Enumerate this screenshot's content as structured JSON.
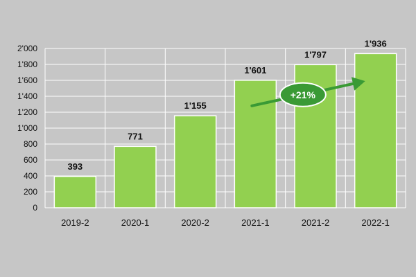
{
  "chart_data": {
    "type": "bar",
    "title": "",
    "xlabel": "",
    "ylabel": "",
    "categories": [
      "2019-2",
      "2020-1",
      "2020-2",
      "2021-1",
      "2021-2",
      "2022-1"
    ],
    "values": [
      393,
      771,
      1155,
      1601,
      1797,
      1936
    ],
    "value_labels": [
      "393",
      "771",
      "1'155",
      "1'601",
      "1'797",
      "1'936"
    ],
    "ylim": [
      0,
      2000
    ],
    "yticks": [
      0,
      200,
      400,
      600,
      800,
      1000,
      1200,
      1400,
      1600,
      1800,
      2000
    ],
    "ytick_labels": [
      "0",
      "200",
      "400",
      "600",
      "800",
      "1'000",
      "1'200",
      "1'400",
      "1'600",
      "1'800",
      "2'000"
    ],
    "grid": true,
    "legend": "none",
    "annotation": {
      "label": "+21%",
      "arrow_from": {
        "category": "2021-1",
        "value": 1280
      },
      "arrow_to": {
        "category": "2022-1",
        "value": 1590
      }
    }
  },
  "colors": {
    "background": "#c6c6c6",
    "plot_background": "#c6c6c6",
    "bar_fill": "#92d050",
    "bar_stroke": "#ffffff",
    "grid": "#ffffff",
    "arrow": "#3a9a35",
    "badge": "#3a9a35"
  }
}
